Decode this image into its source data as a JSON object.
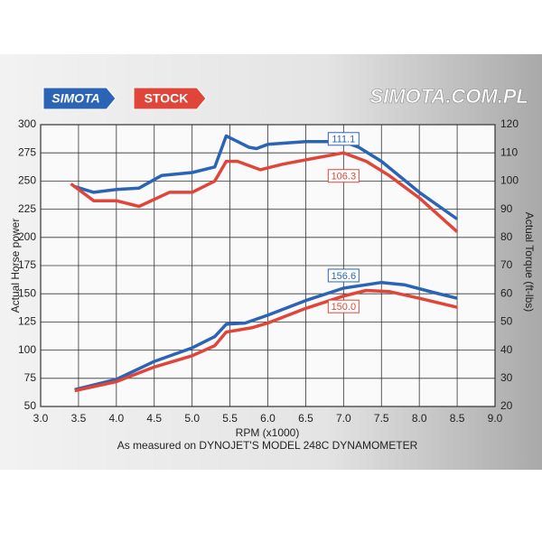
{
  "chart_data": {
    "type": "line",
    "watermark": "SIMOTA.COM.PL",
    "legend": [
      {
        "name": "SIMOTA",
        "color": "#2b63b5"
      },
      {
        "name": "STOCK",
        "color": "#e0453a"
      }
    ],
    "xlabel": "RPM (x1000)",
    "ylabel": "Actual Horse power",
    "y2label": "Actual Torque (ft-lbs)",
    "footnote": "As measured on DYNOJET'S MODEL 248C DYNAMOMETER",
    "xlim": [
      3.0,
      9.0
    ],
    "xticks": [
      {
        "value": 3.0,
        "label": "3.0"
      },
      3.5,
      {
        "value": 4.0,
        "label": "4.0"
      },
      4.5,
      {
        "value": 5.0,
        "label": "5.0"
      },
      5.5,
      {
        "value": 6.0,
        "label": "6.0"
      },
      6.5,
      {
        "value": 7.0,
        "label": "7.0"
      },
      7.5,
      {
        "value": 8.0,
        "label": "8.0"
      },
      8.5,
      {
        "value": 9.0,
        "label": "9.0"
      }
    ],
    "ylim": [
      50,
      300
    ],
    "yticks": [
      50,
      75,
      100,
      125,
      150,
      175,
      200,
      225,
      250,
      275,
      300
    ],
    "y2lim": [
      20,
      120
    ],
    "y2ticks": [
      20,
      30,
      40,
      50,
      60,
      70,
      80,
      90,
      100,
      110,
      120
    ],
    "grid": true,
    "series": [
      {
        "color": "#2b63b5",
        "axis": "y2",
        "x": [
          3.45,
          3.7,
          4.0,
          4.3,
          4.6,
          5.0,
          5.3,
          5.45,
          5.6,
          5.75,
          5.85,
          6.0,
          6.5,
          7.0,
          7.2,
          7.5,
          8.0,
          8.5
        ],
        "values": [
          98,
          96,
          97,
          97.5,
          102,
          103,
          105,
          116,
          114,
          112,
          111.5,
          113,
          114,
          114,
          112,
          107,
          96,
          86.5
        ]
      },
      {
        "color": "#e0453a",
        "axis": "y2",
        "x": [
          3.4,
          3.7,
          4.0,
          4.3,
          4.7,
          5.0,
          5.3,
          5.45,
          5.6,
          5.9,
          6.2,
          6.6,
          7.0,
          7.3,
          7.6,
          8.0,
          8.5
        ],
        "values": [
          99,
          93,
          93,
          91,
          96,
          96,
          100,
          107,
          107,
          104,
          106,
          108,
          110,
          107,
          102,
          94,
          82
        ]
      },
      {
        "color": "#2b63b5",
        "x": [
          3.45,
          4.0,
          4.5,
          5.0,
          5.3,
          5.45,
          5.7,
          6.0,
          6.5,
          7.0,
          7.5,
          7.8,
          8.2,
          8.5
        ],
        "values": [
          65,
          74,
          90,
          102,
          112,
          123,
          124,
          131,
          144,
          155,
          160,
          158,
          151,
          146
        ]
      },
      {
        "color": "#e0453a",
        "x": [
          3.45,
          4.0,
          4.5,
          5.0,
          5.3,
          5.45,
          5.8,
          6.0,
          6.5,
          7.0,
          7.3,
          7.6,
          8.0,
          8.5
        ],
        "values": [
          64,
          72,
          85,
          95,
          104,
          116,
          120,
          124,
          137,
          148,
          153,
          152,
          146,
          138
        ]
      }
    ],
    "annotations": [
      {
        "text": "111.1",
        "x": 7.0,
        "y": 111.1,
        "axis": "y2",
        "color": "#2b63b5"
      },
      {
        "text": "106.3",
        "x": 7.0,
        "y": 106.3,
        "axis": "y2",
        "color": "#e0453a"
      },
      {
        "text": "156.6",
        "x": 7.0,
        "y": 156.6,
        "color": "#2b63b5"
      },
      {
        "text": "150.0",
        "x": 7.0,
        "y": 150.0,
        "color": "#e0453a"
      }
    ]
  }
}
